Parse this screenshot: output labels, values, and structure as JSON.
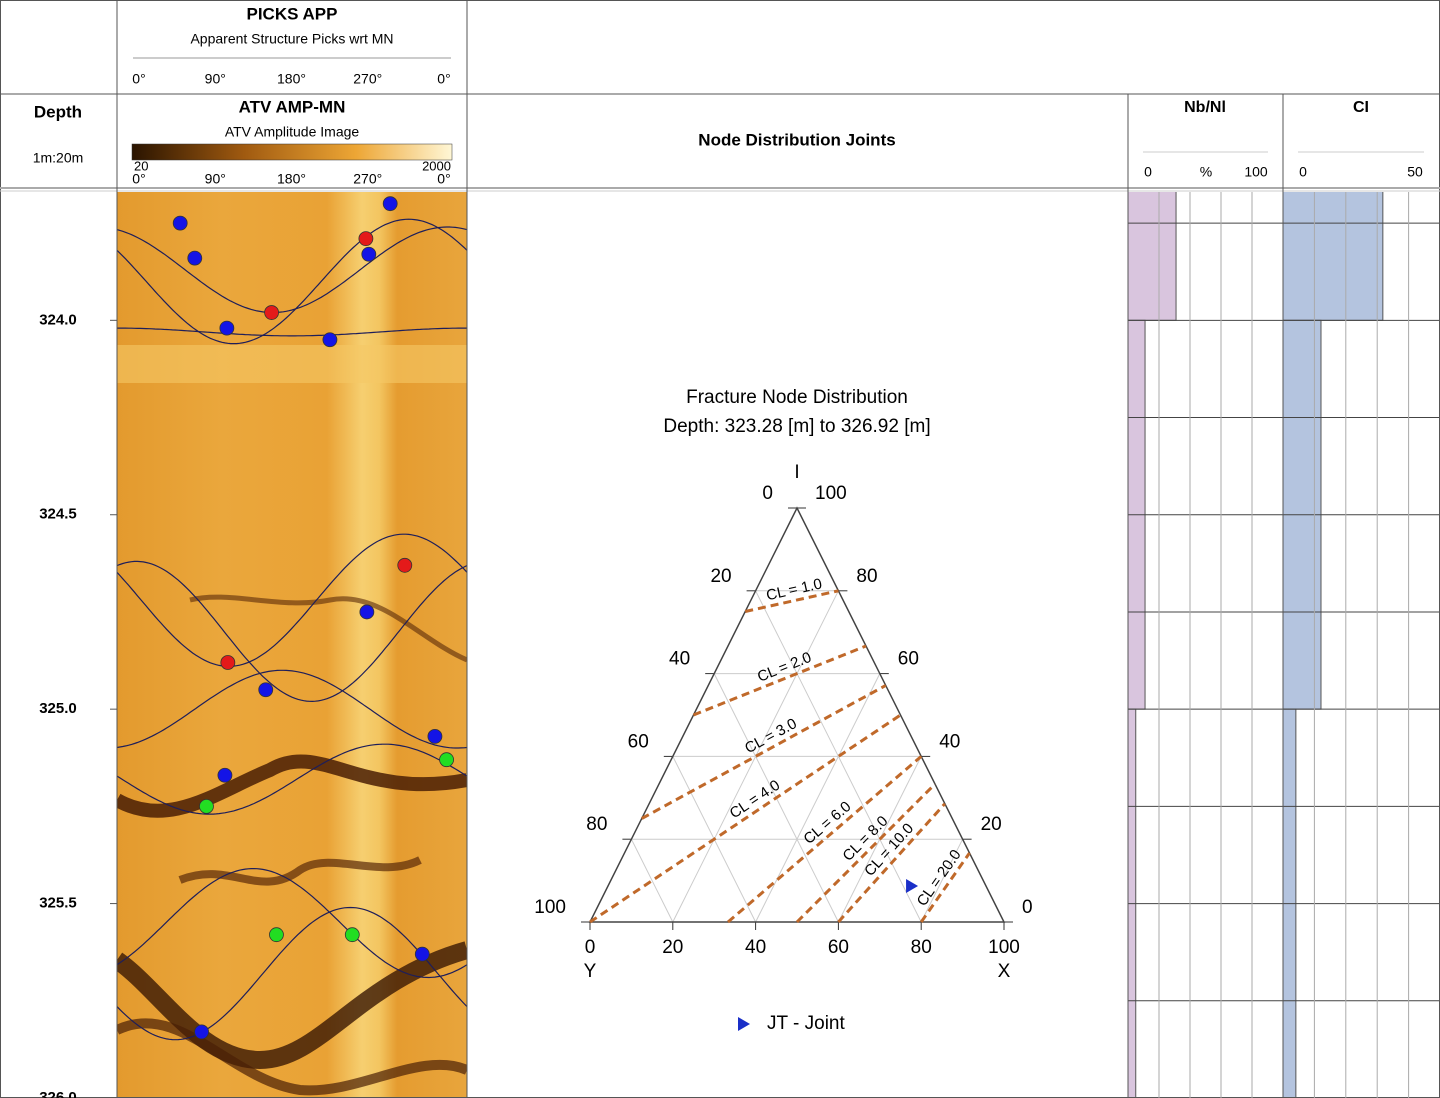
{
  "header": {
    "depth_title": "Depth",
    "scale": "1m:20m",
    "picks_title": "PICKS APP",
    "picks_subtitle": "Apparent Structure Picks wrt MN",
    "image_title": "ATV AMP-MN",
    "image_subtitle": "ATV Amplitude Image",
    "azimuth_ticks": [
      {
        "value": 0,
        "label": "0°"
      },
      {
        "value": 90,
        "label": "90°"
      },
      {
        "value": 180,
        "label": "180°"
      },
      {
        "value": 270,
        "label": "270°"
      },
      {
        "value": 360,
        "label": "0°"
      }
    ],
    "colorbar": [
      20,
      2000
    ],
    "node_title": "Node Distribution Joints",
    "nb_title": "Nb/Nl",
    "nb_unit": "%",
    "ci_title": "CI"
  },
  "depth": {
    "ylim": [
      323.67,
      326.0
    ],
    "yticks": [
      {
        "value": 324,
        "label": "324.0"
      },
      {
        "value": 324.5,
        "label": "324.5"
      },
      {
        "value": 325,
        "label": "325.0"
      },
      {
        "value": 325.5,
        "label": "325.5"
      },
      {
        "value": 326,
        "label": "326.0"
      }
    ],
    "grid": [
      323.75,
      324.0,
      324.25,
      324.5,
      324.75,
      325.0,
      325.25,
      325.5,
      325.75,
      326.0
    ]
  },
  "image": {
    "xlim": [
      0,
      360
    ],
    "sinusoids": [
      {
        "depth": 323.87,
        "amplitude": 0.11,
        "azimuth": 160
      },
      {
        "depth": 323.9,
        "amplitude": 0.16,
        "azimuth": 120
      },
      {
        "depth": 324.03,
        "amplitude": 0.01,
        "azimuth": 180
      },
      {
        "depth": 324.72,
        "amplitude": 0.17,
        "azimuth": 115
      },
      {
        "depth": 324.8,
        "amplitude": 0.18,
        "azimuth": 200
      },
      {
        "depth": 325.0,
        "amplitude": 0.1,
        "azimuth": 350
      },
      {
        "depth": 325.18,
        "amplitude": 0.09,
        "azimuth": 95
      },
      {
        "depth": 325.55,
        "amplitude": 0.14,
        "azimuth": 320
      },
      {
        "depth": 325.68,
        "amplitude": 0.17,
        "azimuth": 60
      }
    ],
    "picks": [
      {
        "color": "#e41a1a",
        "x": [
          256,
          159,
          296,
          114
        ],
        "y": [
          323.79,
          323.98,
          324.63,
          324.88
        ]
      },
      {
        "color": "#1414e6",
        "x": [
          65,
          80,
          281,
          259,
          113,
          219,
          257,
          153,
          327,
          111,
          314,
          87
        ],
        "y": [
          323.75,
          323.84,
          323.7,
          323.83,
          324.02,
          324.05,
          324.75,
          324.95,
          325.07,
          325.17,
          325.63,
          325.83
        ]
      },
      {
        "color": "#22dd22",
        "x": [
          339,
          92,
          164,
          242
        ],
        "y": [
          325.13,
          325.25,
          325.58,
          325.58
        ]
      }
    ]
  },
  "ternary": {
    "title": "Fracture Node Distribution",
    "subtitle": "Depth: 323.28 [m] to 326.92 [m]",
    "axis_i": "I",
    "axis_y": "Y",
    "axis_x": "X",
    "ticks": [
      0,
      20,
      40,
      60,
      80,
      100
    ],
    "cl_lines": [
      {
        "value": 1,
        "label": "CL = 1.0"
      },
      {
        "value": 2,
        "label": "CL = 2.0"
      },
      {
        "value": 3,
        "label": "CL = 3.0"
      },
      {
        "value": 4,
        "label": "CL = 4.0"
      },
      {
        "value": 6,
        "label": "CL = 6.0"
      },
      {
        "value": 8,
        "label": "CL = 8.0"
      },
      {
        "value": 10,
        "label": "CL = 10.0"
      },
      {
        "value": 20,
        "label": "CL = 20.0"
      }
    ],
    "cl_color": "#c0692a",
    "points": {
      "name": "JT - Joint",
      "color": "#1a2fc8",
      "I": [
        8.7
      ],
      "Y": [
        18.1
      ],
      "X": [
        73.2
      ]
    }
  },
  "nb_nl": {
    "xlim": [
      0,
      100
    ],
    "xticks": [
      0,
      100
    ],
    "xgrid": [
      20,
      40,
      60,
      80
    ],
    "bins": [
      323.0,
      324.0,
      325.0,
      326.0
    ],
    "values": [
      31,
      11,
      5
    ],
    "color": "#d9c5de"
  },
  "ci": {
    "xlim": [
      0,
      50
    ],
    "xticks": [
      0,
      50
    ],
    "xgrid": [
      10,
      20,
      30,
      40
    ],
    "bins": [
      323.0,
      324.0,
      325.0,
      326.0
    ],
    "values": [
      31.8,
      12.1,
      4.1
    ],
    "color": "#b4c4df"
  }
}
